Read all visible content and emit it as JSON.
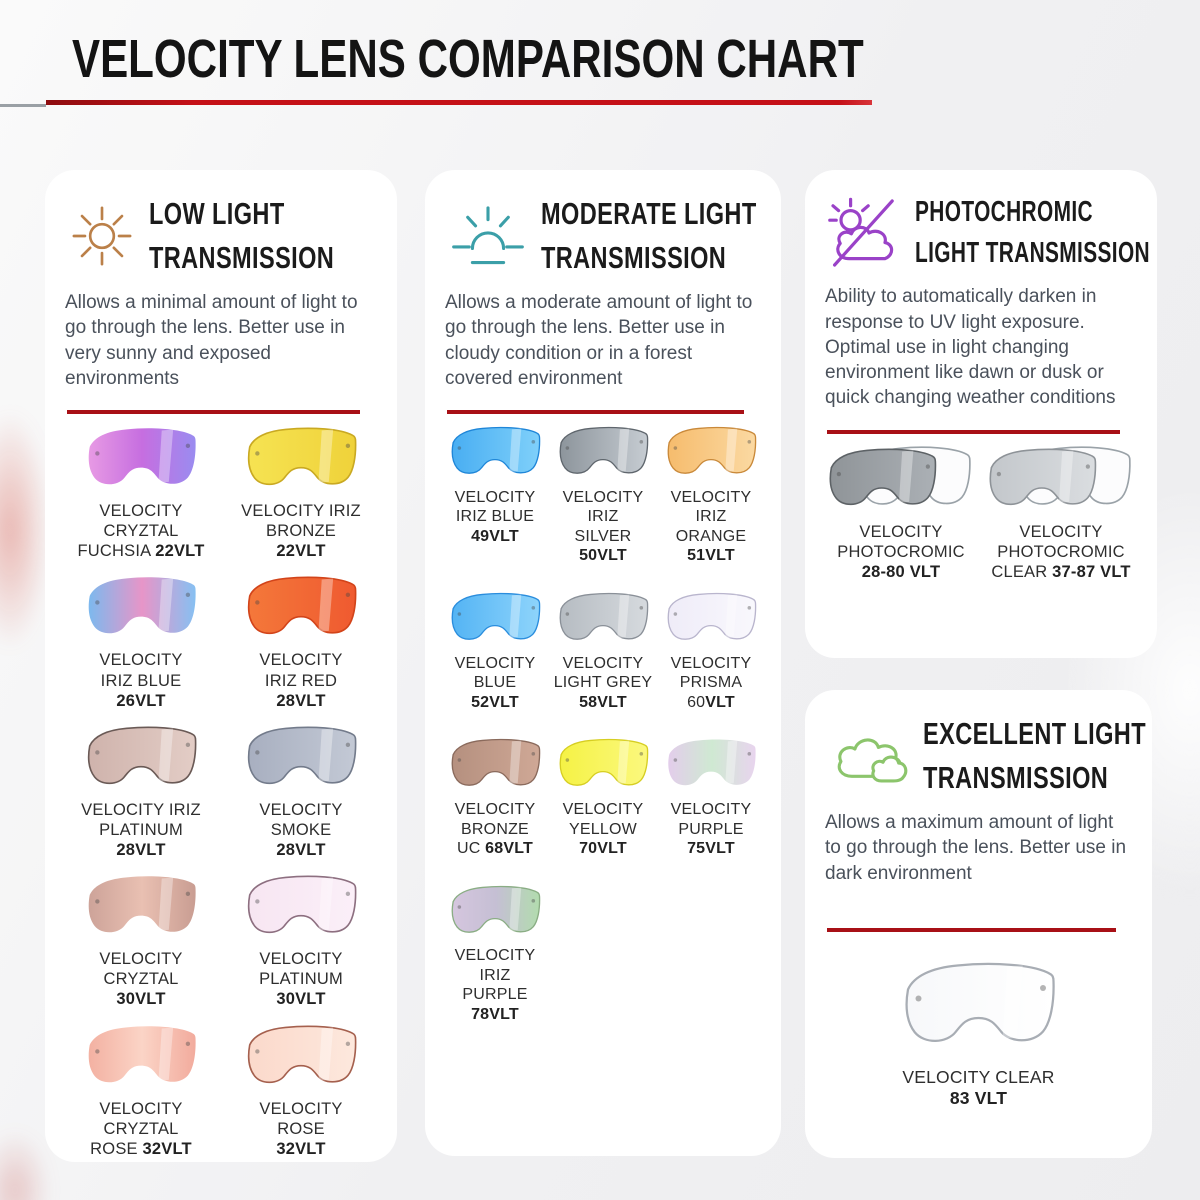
{
  "page": {
    "title": "VELOCITY LENS COMPARISON CHART",
    "accent_red": "#b5121b"
  },
  "panels": [
    {
      "id": "low-light",
      "icon": "sun-icon",
      "icon_color": "#bb8049",
      "title1": "LOW LIGHT",
      "title2": "TRANSMISSION",
      "description": "Allows a minimal amount of light to go through the lens. Better use in very sunny and exposed environments",
      "cols": 2,
      "lenses": [
        {
          "lines": [
            {
              "t": "VELOCITY"
            },
            {
              "t": "CRYZTAL"
            },
            {
              "t": "FUCHSIA ",
              "b": "22VLT"
            }
          ],
          "fill": [
            "#e79ae4",
            "#c66ee0",
            "#9a8cf0"
          ],
          "stroke": "none"
        },
        {
          "lines": [
            {
              "t": "VELOCITY IRIZ"
            },
            {
              "t": "BRONZE"
            },
            {
              "b": "22VLT"
            }
          ],
          "fill": [
            "#f6e352",
            "#efd23a"
          ],
          "stroke": "#c9a922"
        },
        {
          "lines": [
            {
              "t": "VELOCITY"
            },
            {
              "t": "IRIZ BLUE"
            },
            {
              "b": "26VLT"
            }
          ],
          "fill": [
            "#7cb9ee",
            "#e795c8",
            "#86c0f2"
          ],
          "stroke": "none"
        },
        {
          "lines": [
            {
              "t": "VELOCITY"
            },
            {
              "t": "IRIZ RED"
            },
            {
              "b": "28VLT"
            }
          ],
          "fill": [
            "#f4783a",
            "#ef5a30"
          ],
          "stroke": "#d2441a"
        },
        {
          "lines": [
            {
              "t": "VELOCITY IRIZ"
            },
            {
              "t": "PLATINUM"
            },
            {
              "b": "28VLT"
            }
          ],
          "fill": [
            "#cfb3ac",
            "#e3cdc6"
          ],
          "stroke": "#6a5a56"
        },
        {
          "lines": [
            {
              "t": "VELOCITY"
            },
            {
              "t": "SMOKE"
            },
            {
              "b": "28VLT"
            }
          ],
          "fill": [
            "#a8afc0",
            "#c3c9d5"
          ],
          "stroke": "#737b8b"
        },
        {
          "lines": [
            {
              "t": "VELOCITY"
            },
            {
              "t": "CRYZTAL"
            },
            {
              "b": "30VLT"
            }
          ],
          "fill": [
            "#cda399",
            "#e9c0b2",
            "#c99d92"
          ],
          "stroke": "none"
        },
        {
          "lines": [
            {
              "t": "VELOCITY"
            },
            {
              "t": "PLATINUM"
            },
            {
              "b": "30VLT"
            }
          ],
          "fill": [
            "#f7e6f2",
            "#fbeff8"
          ],
          "stroke": "#8d6f80"
        },
        {
          "lines": [
            {
              "t": "VELOCITY"
            },
            {
              "t": "CRYZTAL"
            },
            {
              "t": "ROSE ",
              "b": "32VLT"
            }
          ],
          "fill": [
            "#f3b1a2",
            "#fbd4c6",
            "#f2ab9d"
          ],
          "stroke": "none"
        },
        {
          "lines": [
            {
              "t": "VELOCITY"
            },
            {
              "t": "ROSE"
            },
            {
              "b": "32VLT"
            }
          ],
          "fill": [
            "#fbd9cb",
            "#fde8dd"
          ],
          "stroke": "#a5604e"
        }
      ]
    },
    {
      "id": "moderate-light",
      "icon": "sunrise-icon",
      "icon_color": "#3b9fa8",
      "title1": "MODERATE LIGHT",
      "title2": "TRANSMISSION",
      "description": "Allows a moderate amount of light to go through the lens. Better use in cloudy condition or in a forest covered environment",
      "cols": 3,
      "lenses": [
        {
          "lines": [
            {
              "t": "VELOCITY"
            },
            {
              "t": "IRIZ BLUE"
            },
            {
              "b": "49VLT"
            }
          ],
          "fill": [
            "#49aef2",
            "#7fd0fa"
          ],
          "stroke": "#1f86d8"
        },
        {
          "lines": [
            {
              "t": "VELOCITY"
            },
            {
              "t": "IRIZ"
            },
            {
              "t": "SILVER"
            },
            {
              "b": "50VLT"
            }
          ],
          "fill": [
            "#8d959c",
            "#c6ccd2"
          ],
          "stroke": "#5f666d"
        },
        {
          "lines": [
            {
              "t": "VELOCITY"
            },
            {
              "t": "IRIZ"
            },
            {
              "t": "ORANGE"
            },
            {
              "b": "51VLT"
            }
          ],
          "fill": [
            "#f6bc6d",
            "#fbd9a2"
          ],
          "stroke": "#c9893a"
        },
        {
          "lines": [
            {
              "t": "VELOCITY"
            },
            {
              "t": "BLUE"
            },
            {
              "b": "52VLT"
            }
          ],
          "fill": [
            "#54b4f4",
            "#8ed4fb"
          ],
          "stroke": "#2a8ddd"
        },
        {
          "lines": [
            {
              "t": "VELOCITY"
            },
            {
              "t": "LIGHT GREY"
            },
            {
              "b": "58VLT"
            }
          ],
          "fill": [
            "#b6bcc2",
            "#d6dade"
          ],
          "stroke": "#8a9098"
        },
        {
          "lines": [
            {
              "t": "VELOCITY"
            },
            {
              "t": "PRISMA"
            },
            {
              "t": "60",
              "b": "VLT"
            }
          ],
          "fill": [
            "#efecf8",
            "#f9f8fd"
          ],
          "stroke": "#b9b5cd"
        },
        {
          "lines": [
            {
              "t": "VELOCITY"
            },
            {
              "t": "BRONZE"
            },
            {
              "t": "UC ",
              "b": "68VLT"
            }
          ],
          "fill": [
            "#b5907f",
            "#cfa896"
          ],
          "stroke": "#8a6a5c"
        },
        {
          "lines": [
            {
              "t": "VELOCITY"
            },
            {
              "t": "YELLOW"
            },
            {
              "b": "70VLT"
            }
          ],
          "fill": [
            "#f5f245",
            "#fbf87e"
          ],
          "stroke": "#d6ce22"
        },
        {
          "lines": [
            {
              "t": "VELOCITY"
            },
            {
              "t": "PURPLE"
            },
            {
              "b": "75VLT"
            }
          ],
          "fill": [
            "#e3cdeb",
            "#cfe9d2",
            "#e8d4ee"
          ],
          "stroke": "none"
        },
        {
          "lines": [
            {
              "t": "VELOCITY"
            },
            {
              "t": "IRIZ"
            },
            {
              "t": "PURPLE"
            },
            {
              "b": "78VLT"
            }
          ],
          "fill": [
            "#d5c6de",
            "#c5bfd4",
            "#b2dcae"
          ],
          "stroke": "#8aad84"
        }
      ]
    },
    {
      "id": "photochromic",
      "icon": "sun-cloud-slash-icon",
      "icon_color": "#9a42c8",
      "title1": "PHOTOCHROMIC",
      "title2": "LIGHT TRANSMISSION",
      "description": "Ability to automatically darken in response to UV light exposure. Optimal use in light changing environment like dawn or dusk or quick changing weather conditions",
      "cols": 2,
      "lenses": [
        {
          "pair": true,
          "lines": [
            {
              "t": "VELOCITY"
            },
            {
              "t": "PHOTOCROMIC"
            },
            {
              "b": "28-80 VLT"
            }
          ],
          "fill": [
            "#8f9498",
            "#abb0b5"
          ],
          "stroke": "#5d6266"
        },
        {
          "pair": true,
          "lines": [
            {
              "t": "VELOCITY"
            },
            {
              "t": "PHOTOCROMIC"
            },
            {
              "t": "CLEAR ",
              "b": "37-87 VLT"
            }
          ],
          "fill": [
            "#c3c7cb",
            "#dadde0"
          ],
          "stroke": "#8e9398"
        }
      ]
    },
    {
      "id": "excellent-light",
      "icon": "clouds-icon",
      "icon_color": "#8cc56c",
      "title1": "EXCELLENT LIGHT",
      "title2": "TRANSMISSION",
      "description": "Allows a maximum amount of light to go through the lens. Better use in dark environment",
      "cols": 1,
      "lenses": [
        {
          "lines": [
            {
              "t": "VELOCITY CLEAR"
            },
            {
              "b": "83 VLT"
            }
          ],
          "fill": [
            "#f7f8fa",
            "#ffffff"
          ],
          "stroke": "#a8adb4"
        }
      ]
    }
  ]
}
